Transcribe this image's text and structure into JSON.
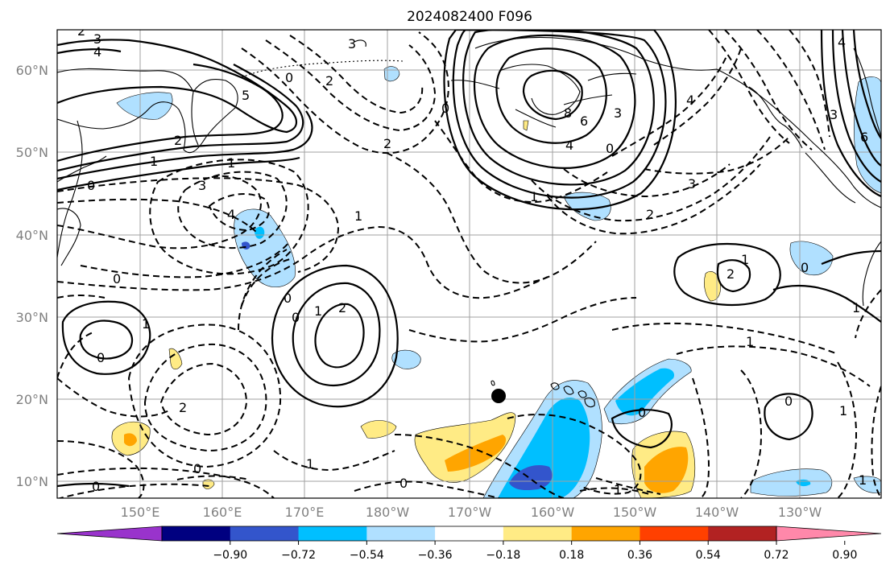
{
  "title": "2024082400 F096",
  "lat_ticks": [
    "60°N",
    "50°N",
    "40°N",
    "30°N",
    "20°N",
    "10°N"
  ],
  "lon_ticks": [
    "150°E",
    "160°E",
    "170°E",
    "180°W",
    "170°W",
    "160°W",
    "150°W",
    "140°W",
    "130°W"
  ],
  "colorbar": {
    "levels": [
      "−0.90",
      "−0.72",
      "−0.54",
      "−0.36",
      "−0.18",
      "0.18",
      "0.36",
      "0.54",
      "0.72",
      "0.90"
    ],
    "colors": [
      "#9933cc",
      "#000080",
      "#3355cc",
      "#00bfff",
      "#b0e0ff",
      "#ffffff",
      "#ffeb85",
      "#ffa500",
      "#ff4000",
      "#b22222",
      "#ff88aa"
    ]
  },
  "contour_labels": [
    {
      "text": "2"
    },
    {
      "text": "3"
    },
    {
      "text": "4"
    },
    {
      "text": "5"
    },
    {
      "text": "0"
    },
    {
      "text": "2"
    },
    {
      "text": "3"
    },
    {
      "text": "2"
    },
    {
      "text": "2"
    },
    {
      "text": "1"
    },
    {
      "text": "0"
    },
    {
      "text": "1"
    },
    {
      "text": "3"
    },
    {
      "text": "4"
    },
    {
      "text": "1"
    },
    {
      "text": "0"
    },
    {
      "text": "0"
    },
    {
      "text": "1"
    },
    {
      "text": "2"
    },
    {
      "text": "1"
    },
    {
      "text": "0"
    },
    {
      "text": "2"
    },
    {
      "text": "0"
    },
    {
      "text": "1"
    },
    {
      "text": "8"
    },
    {
      "text": "6"
    },
    {
      "text": "4"
    },
    {
      "text": "3"
    },
    {
      "text": "0"
    },
    {
      "text": "4"
    },
    {
      "text": "1"
    },
    {
      "text": "3"
    },
    {
      "text": "2"
    },
    {
      "text": "1"
    },
    {
      "text": "2"
    },
    {
      "text": "0"
    },
    {
      "text": "1"
    },
    {
      "text": "1"
    },
    {
      "text": "0"
    },
    {
      "text": "0"
    },
    {
      "text": "1"
    },
    {
      "text": "1"
    },
    {
      "text": "0"
    },
    {
      "text": "1"
    },
    {
      "text": "0"
    },
    {
      "text": "0"
    },
    {
      "text": "4"
    },
    {
      "text": "3"
    },
    {
      "text": "6"
    },
    {
      "text": "0"
    }
  ],
  "marker": "storm-dot"
}
